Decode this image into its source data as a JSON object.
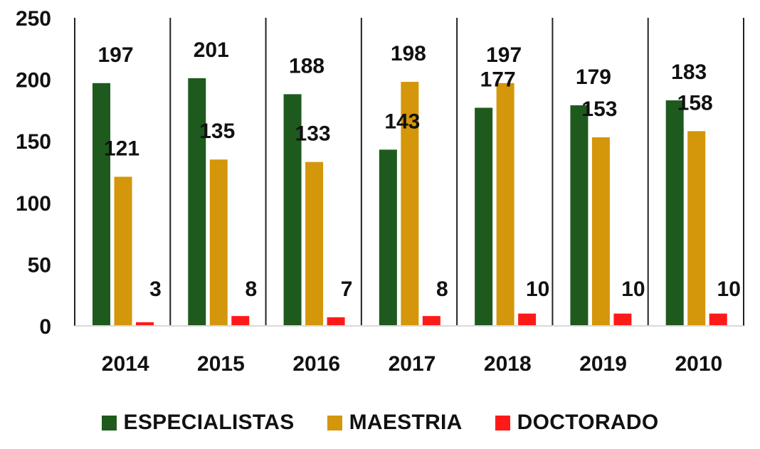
{
  "chart_data": {
    "type": "bar",
    "categories": [
      "2014",
      "2015",
      "2016",
      "2017",
      "2018",
      "2019",
      "2010"
    ],
    "series": [
      {
        "name": "ESPECIALISTAS",
        "color": "#1e5a1e",
        "values": [
          197,
          201,
          188,
          143,
          177,
          179,
          183
        ]
      },
      {
        "name": "MAESTRIA",
        "color": "#d4960a",
        "values": [
          121,
          135,
          133,
          198,
          197,
          153,
          158
        ]
      },
      {
        "name": "DOCTORADO",
        "color": "#ff1a1a",
        "values": [
          3,
          8,
          7,
          8,
          10,
          10,
          10
        ]
      }
    ],
    "ylim": [
      0,
      250
    ],
    "yticks": [
      "0",
      "50",
      "100",
      "150",
      "200",
      "250"
    ],
    "grid": false,
    "vertical_separators": true,
    "legend_position": "bottom"
  }
}
